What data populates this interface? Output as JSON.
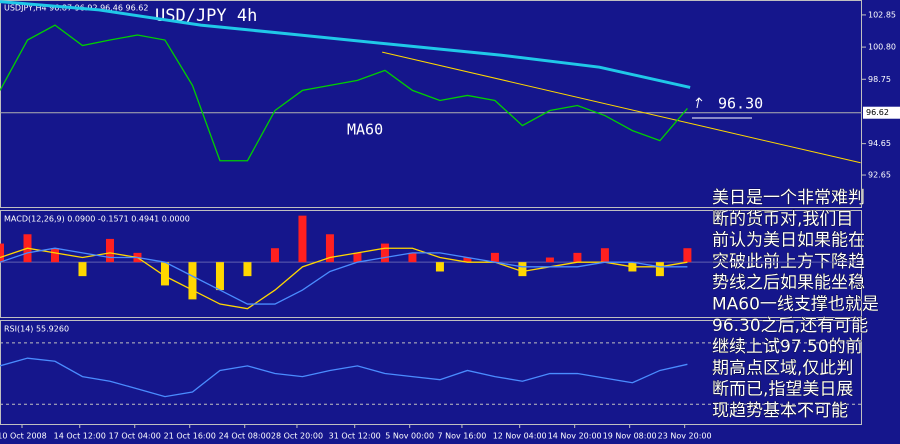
{
  "chart_data": [
    {
      "type": "line",
      "title": "USD/JPY 4h",
      "subtitle": "USDJPY,H4 96.87 96.92 96.46 96.62",
      "annotations": [
        "MA60",
        "96.30"
      ],
      "x": [
        0,
        10,
        20,
        30,
        40,
        50,
        60,
        70,
        80,
        90,
        100,
        110,
        120,
        130,
        140,
        150,
        160,
        170,
        180,
        190,
        200,
        210,
        220,
        230,
        240,
        250
      ],
      "series": [
        {
          "color": "#00d000",
          "values": [
            98.04,
            101.25,
            102.2,
            100.9,
            101.25,
            101.57,
            101.25,
            98.36,
            93.56,
            93.56,
            96.76,
            98.04,
            98.36,
            98.68,
            99.32,
            98.04,
            97.4,
            97.72,
            97.4,
            95.8,
            96.76,
            97.08,
            96.44,
            95.48,
            94.84,
            96.89
          ]
        },
        {
          "color": "#20c8e8",
          "x": [
            0,
            36,
            73,
            109,
            145,
            182,
            218,
            251
          ],
          "values": [
            103.7,
            103.17,
            102.2,
            101.57,
            100.93,
            100.29,
            99.52,
            98.23
          ]
        }
      ],
      "trendline": {
        "color": "#ffd700",
        "x": [
          139,
          313
        ],
        "values": [
          100.48,
          93.43
        ]
      },
      "current_price": 96.62,
      "xlim": [
        0,
        313.5
      ],
      "ylim": [
        90.55,
        103.8
      ],
      "yticks": [
        102.85,
        {
          "value": 100.8,
          "label": "100.80"
        },
        98.75,
        94.65,
        92.65
      ]
    },
    {
      "type": "bar",
      "subtitle": "MACD(12,26,9) 0.0900 -0.1571 0.4941 0.0000",
      "x": [
        0,
        10,
        20,
        30,
        40,
        50,
        60,
        70,
        80,
        90,
        100,
        110,
        120,
        130,
        140,
        150,
        160,
        170,
        180,
        190,
        200,
        210,
        220,
        230,
        240,
        250
      ],
      "values": [
        0.4,
        0.6,
        0.3,
        -0.3,
        0.5,
        0.2,
        -0.5,
        -0.8,
        -0.6,
        -0.3,
        0.3,
        1.0,
        0.6,
        0.2,
        0.4,
        0.2,
        -0.2,
        0.1,
        0.2,
        -0.3,
        0.1,
        0.2,
        0.3,
        -0.2,
        -0.3,
        0.3
      ],
      "color_positive": "#ff2020",
      "color_negative": "#ffd700",
      "series": [
        {
          "color": "#ffd700",
          "values": [
            0.1,
            0.3,
            0.2,
            0.1,
            0.2,
            0.1,
            -0.3,
            -0.6,
            -0.9,
            -1.0,
            -0.6,
            -0.1,
            0.1,
            0.2,
            0.3,
            0.3,
            0.1,
            0.0,
            0.0,
            -0.2,
            -0.1,
            0.0,
            0.0,
            -0.1,
            -0.1,
            0.0
          ]
        },
        {
          "color": "#4a8cff",
          "values": [
            0.0,
            0.2,
            0.3,
            0.2,
            0.1,
            0.1,
            0.0,
            -0.3,
            -0.6,
            -0.9,
            -0.9,
            -0.6,
            -0.2,
            0.0,
            0.1,
            0.2,
            0.2,
            0.1,
            0.0,
            -0.1,
            -0.1,
            -0.1,
            0.0,
            0.0,
            -0.1,
            -0.1
          ]
        }
      ],
      "xlim": [
        0,
        313.5
      ],
      "ylim": [
        -1.2,
        1.1
      ]
    },
    {
      "type": "line",
      "subtitle": "RSI(14) 55.9260",
      "x": [
        0,
        10,
        20,
        30,
        40,
        50,
        60,
        70,
        80,
        90,
        100,
        110,
        120,
        130,
        140,
        150,
        160,
        170,
        180,
        190,
        200,
        210,
        220,
        230,
        240,
        250
      ],
      "series": [
        {
          "color": "#4a8cff",
          "values": [
            55,
            60,
            58,
            48,
            45,
            40,
            35,
            38,
            52,
            55,
            50,
            48,
            52,
            55,
            50,
            48,
            46,
            52,
            48,
            45,
            50,
            50,
            47,
            44,
            52,
            56
          ]
        }
      ],
      "levels": [
        70,
        30
      ],
      "xlim": [
        0,
        313.5
      ],
      "ylim": [
        16.5,
        84.2
      ],
      "xticks": [
        {
          "value": 8,
          "label": "10 Oct 2008"
        },
        {
          "value": 29,
          "label": "14 Oct 12:00"
        },
        {
          "value": 49,
          "label": "17 Oct 04:00"
        },
        {
          "value": 69,
          "label": "21 Oct 16:00"
        },
        {
          "value": 89,
          "label": "24 Oct 08:00"
        },
        {
          "value": 108,
          "label": "28 Oct 20:00"
        },
        {
          "value": 129,
          "label": "31 Oct 12:00"
        },
        {
          "value": 149,
          "label": "5 Nov 00:00"
        },
        {
          "value": 168,
          "label": "7 Nov 16:00"
        },
        {
          "value": 189,
          "label": "12 Nov 04:00"
        },
        {
          "value": 209,
          "label": "14 Nov 20:00"
        },
        {
          "value": 229,
          "label": "19 Nov 08:00"
        },
        {
          "value": 249,
          "label": "23 Nov 20:00"
        }
      ]
    }
  ],
  "note": {
    "lines": [
      "美日是一个非常难判",
      "断的货币对,我们目",
      "前认为美日如果能在",
      "突破此前上方下降趋",
      "势线之后如果能坐稳",
      "MA60一线支撑也就是",
      "96.30之后,还有可能",
      "继续上试97.50的前",
      "期高点区域,仅此判",
      "断而已,指望美日展",
      "现趋势基本不可能"
    ]
  }
}
